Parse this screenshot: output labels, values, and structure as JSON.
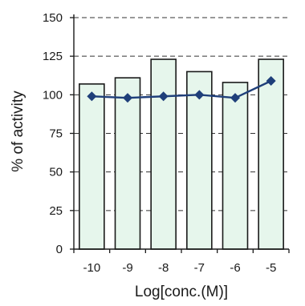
{
  "chart_data": {
    "type": "bar",
    "title": "",
    "xlabel": "Log[conc.(M)]",
    "ylabel": "% of activity",
    "categories": [
      "-10",
      "-9",
      "-8",
      "-7",
      "-6",
      "-5"
    ],
    "ylim": [
      0,
      150
    ],
    "yticks": [
      "0",
      "25",
      "50",
      "75",
      "100",
      "125",
      "150"
    ],
    "grid": "horizontal dashed lines at 125 and 150",
    "series": [
      {
        "kind": "bar",
        "values": [
          107,
          111,
          123,
          115,
          108,
          123
        ]
      },
      {
        "kind": "line",
        "marker": "diamond",
        "values": [
          99,
          98,
          99,
          100,
          98,
          109
        ]
      }
    ],
    "colors": {
      "bar_fill": "#e6f6ec",
      "bar_stroke": "#1a1a1a",
      "line": "#1f3f7a",
      "grid": "#333333"
    }
  }
}
